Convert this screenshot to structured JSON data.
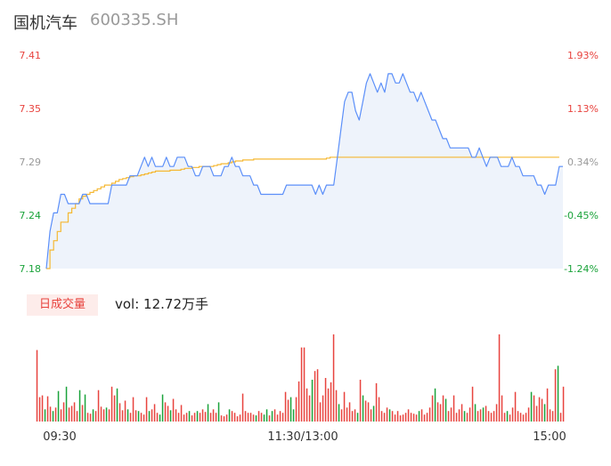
{
  "header": {
    "name": "国机汽车",
    "code": "600335.SH"
  },
  "volume_panel": {
    "period_button": "日成交量",
    "vol_prefix": "vol: ",
    "vol_value": "12.72万手"
  },
  "colors": {
    "price_line": "#5b8ff9",
    "avg_line": "#f5b833",
    "area_fill": "#eef3fb",
    "up": "#e8433e",
    "down": "#1aa33a",
    "neutral": "#999999"
  },
  "chart_data": [
    {
      "type": "line",
      "title": "",
      "y_price_ticks": [
        "7.41",
        "7.35",
        "7.29",
        "7.24",
        "7.18"
      ],
      "y_pct_ticks": [
        "1.93%",
        "1.13%",
        "0.34%",
        "-0.45%",
        "-1.24%"
      ],
      "ylim": [
        7.18,
        7.41
      ],
      "prev_close": 7.265,
      "series": [
        {
          "name": "",
          "values": [
            7.18,
            7.22,
            7.24,
            7.24,
            7.26,
            7.26,
            7.25,
            7.25,
            7.25,
            7.25,
            7.26,
            7.26,
            7.25,
            7.25,
            7.25,
            7.25,
            7.25,
            7.25,
            7.27,
            7.27,
            7.27,
            7.27,
            7.27,
            7.28,
            7.28,
            7.28,
            7.29,
            7.3,
            7.29,
            7.3,
            7.29,
            7.29,
            7.29,
            7.3,
            7.29,
            7.29,
            7.3,
            7.3,
            7.3,
            7.29,
            7.29,
            7.28,
            7.28,
            7.29,
            7.29,
            7.29,
            7.28,
            7.28,
            7.28,
            7.29,
            7.29,
            7.3,
            7.29,
            7.29,
            7.28,
            7.28,
            7.28,
            7.27,
            7.27,
            7.26,
            7.26,
            7.26,
            7.26,
            7.26,
            7.26,
            7.26,
            7.27,
            7.27,
            7.27,
            7.27,
            7.27,
            7.27,
            7.27,
            7.27,
            7.26,
            7.27,
            7.26,
            7.27,
            7.27,
            7.27,
            7.3,
            7.33,
            7.36,
            7.37,
            7.37,
            7.35,
            7.34,
            7.36,
            7.38,
            7.39,
            7.38,
            7.37,
            7.38,
            7.37,
            7.39,
            7.39,
            7.38,
            7.38,
            7.39,
            7.38,
            7.37,
            7.37,
            7.36,
            7.37,
            7.36,
            7.35,
            7.34,
            7.34,
            7.33,
            7.32,
            7.32,
            7.31,
            7.31,
            7.31,
            7.31,
            7.31,
            7.31,
            7.3,
            7.3,
            7.31,
            7.3,
            7.29,
            7.3,
            7.3,
            7.3,
            7.29,
            7.29,
            7.29,
            7.3,
            7.29,
            7.29,
            7.28,
            7.28,
            7.28,
            7.28,
            7.27,
            7.27,
            7.26,
            7.27,
            7.27,
            7.27,
            7.29,
            7.29
          ]
        },
        {
          "name": "",
          "values": [
            7.18,
            7.2,
            7.21,
            7.22,
            7.23,
            7.23,
            7.24,
            7.245,
            7.25,
            7.255,
            7.258,
            7.26,
            7.262,
            7.264,
            7.266,
            7.268,
            7.27,
            7.27,
            7.272,
            7.274,
            7.276,
            7.277,
            7.278,
            7.279,
            7.28,
            7.28,
            7.281,
            7.282,
            7.283,
            7.284,
            7.285,
            7.285,
            7.285,
            7.285,
            7.286,
            7.286,
            7.286,
            7.287,
            7.288,
            7.288,
            7.289,
            7.289,
            7.29,
            7.29,
            7.29,
            7.29,
            7.291,
            7.292,
            7.293,
            7.293,
            7.294,
            7.295,
            7.296,
            7.296,
            7.297,
            7.297,
            7.297,
            7.298,
            7.298,
            7.298,
            7.298,
            7.298,
            7.298,
            7.298,
            7.298,
            7.298,
            7.298,
            7.298,
            7.298,
            7.298,
            7.298,
            7.298,
            7.298,
            7.298,
            7.298,
            7.298,
            7.298,
            7.299,
            7.3,
            7.3,
            7.3,
            7.3,
            7.3,
            7.3,
            7.3,
            7.3,
            7.3,
            7.3,
            7.3,
            7.3,
            7.3,
            7.3,
            7.3,
            7.3,
            7.3,
            7.3,
            7.3,
            7.3,
            7.3,
            7.3,
            7.3,
            7.3,
            7.3,
            7.3,
            7.3,
            7.3,
            7.3,
            7.3,
            7.3,
            7.3,
            7.3,
            7.3,
            7.3,
            7.3,
            7.3,
            7.3,
            7.3,
            7.3,
            7.3,
            7.3,
            7.3,
            7.3,
            7.3,
            7.3,
            7.3,
            7.3,
            7.3,
            7.3,
            7.3,
            7.3,
            7.3,
            7.3,
            7.3,
            7.3,
            7.3,
            7.3,
            7.3,
            7.3,
            7.3,
            7.3,
            7.3,
            7.3
          ]
        }
      ]
    },
    {
      "type": "bar",
      "title": "",
      "x_ticks": [
        "09:30",
        "11:30/13:00",
        "15:00"
      ],
      "bars": [
        {
          "v": 0.82,
          "d": "up"
        },
        {
          "v": 0.28,
          "d": "up"
        },
        {
          "v": 0.3,
          "d": "up"
        },
        {
          "v": 0.14,
          "d": "down"
        },
        {
          "v": 0.29,
          "d": "up"
        },
        {
          "v": 0.17,
          "d": "up"
        },
        {
          "v": 0.12,
          "d": "down"
        },
        {
          "v": 0.16,
          "d": "up"
        },
        {
          "v": 0.35,
          "d": "down"
        },
        {
          "v": 0.14,
          "d": "up"
        },
        {
          "v": 0.22,
          "d": "up"
        },
        {
          "v": 0.4,
          "d": "down"
        },
        {
          "v": 0.16,
          "d": "up"
        },
        {
          "v": 0.18,
          "d": "up"
        },
        {
          "v": 0.22,
          "d": "up"
        },
        {
          "v": 0.12,
          "d": "up"
        },
        {
          "v": 0.36,
          "d": "down"
        },
        {
          "v": 0.19,
          "d": "up"
        },
        {
          "v": 0.31,
          "d": "down"
        },
        {
          "v": 0.1,
          "d": "up"
        },
        {
          "v": 0.09,
          "d": "up"
        },
        {
          "v": 0.14,
          "d": "down"
        },
        {
          "v": 0.12,
          "d": "up"
        },
        {
          "v": 0.36,
          "d": "up"
        },
        {
          "v": 0.17,
          "d": "up"
        },
        {
          "v": 0.14,
          "d": "up"
        },
        {
          "v": 0.16,
          "d": "down"
        },
        {
          "v": 0.14,
          "d": "up"
        },
        {
          "v": 0.4,
          "d": "up"
        },
        {
          "v": 0.3,
          "d": "up"
        },
        {
          "v": 0.38,
          "d": "down"
        },
        {
          "v": 0.21,
          "d": "up"
        },
        {
          "v": 0.13,
          "d": "up"
        },
        {
          "v": 0.24,
          "d": "up"
        },
        {
          "v": 0.14,
          "d": "down"
        },
        {
          "v": 0.1,
          "d": "up"
        },
        {
          "v": 0.28,
          "d": "up"
        },
        {
          "v": 0.13,
          "d": "up"
        },
        {
          "v": 0.12,
          "d": "down"
        },
        {
          "v": 0.1,
          "d": "up"
        },
        {
          "v": 0.08,
          "d": "up"
        },
        {
          "v": 0.28,
          "d": "up"
        },
        {
          "v": 0.12,
          "d": "down"
        },
        {
          "v": 0.14,
          "d": "up"
        },
        {
          "v": 0.2,
          "d": "up"
        },
        {
          "v": 0.1,
          "d": "up"
        },
        {
          "v": 0.08,
          "d": "down"
        },
        {
          "v": 0.31,
          "d": "down"
        },
        {
          "v": 0.22,
          "d": "up"
        },
        {
          "v": 0.18,
          "d": "up"
        },
        {
          "v": 0.13,
          "d": "down"
        },
        {
          "v": 0.26,
          "d": "up"
        },
        {
          "v": 0.14,
          "d": "up"
        },
        {
          "v": 0.1,
          "d": "up"
        },
        {
          "v": 0.19,
          "d": "up"
        },
        {
          "v": 0.08,
          "d": "up"
        },
        {
          "v": 0.1,
          "d": "up"
        },
        {
          "v": 0.12,
          "d": "down"
        },
        {
          "v": 0.07,
          "d": "up"
        },
        {
          "v": 0.1,
          "d": "up"
        },
        {
          "v": 0.12,
          "d": "down"
        },
        {
          "v": 0.1,
          "d": "up"
        },
        {
          "v": 0.14,
          "d": "up"
        },
        {
          "v": 0.11,
          "d": "up"
        },
        {
          "v": 0.2,
          "d": "down"
        },
        {
          "v": 0.1,
          "d": "up"
        },
        {
          "v": 0.14,
          "d": "up"
        },
        {
          "v": 0.1,
          "d": "up"
        },
        {
          "v": 0.22,
          "d": "down"
        },
        {
          "v": 0.07,
          "d": "up"
        },
        {
          "v": 0.06,
          "d": "up"
        },
        {
          "v": 0.08,
          "d": "up"
        },
        {
          "v": 0.14,
          "d": "down"
        },
        {
          "v": 0.12,
          "d": "up"
        },
        {
          "v": 0.1,
          "d": "up"
        },
        {
          "v": 0.06,
          "d": "up"
        },
        {
          "v": 0.08,
          "d": "up"
        },
        {
          "v": 0.32,
          "d": "up"
        },
        {
          "v": 0.12,
          "d": "up"
        },
        {
          "v": 0.1,
          "d": "up"
        },
        {
          "v": 0.1,
          "d": "up"
        },
        {
          "v": 0.08,
          "d": "up"
        },
        {
          "v": 0.07,
          "d": "down"
        },
        {
          "v": 0.12,
          "d": "up"
        },
        {
          "v": 0.1,
          "d": "up"
        },
        {
          "v": 0.08,
          "d": "down"
        },
        {
          "v": 0.14,
          "d": "down"
        },
        {
          "v": 0.07,
          "d": "up"
        },
        {
          "v": 0.12,
          "d": "down"
        },
        {
          "v": 0.14,
          "d": "up"
        },
        {
          "v": 0.08,
          "d": "up"
        },
        {
          "v": 0.12,
          "d": "up"
        },
        {
          "v": 0.1,
          "d": "up"
        },
        {
          "v": 0.34,
          "d": "up"
        },
        {
          "v": 0.25,
          "d": "up"
        },
        {
          "v": 0.28,
          "d": "down"
        },
        {
          "v": 0.14,
          "d": "down"
        },
        {
          "v": 0.28,
          "d": "up"
        },
        {
          "v": 0.46,
          "d": "up"
        },
        {
          "v": 0.85,
          "d": "up"
        },
        {
          "v": 0.85,
          "d": "up"
        },
        {
          "v": 0.38,
          "d": "up"
        },
        {
          "v": 0.3,
          "d": "up"
        },
        {
          "v": 0.48,
          "d": "down"
        },
        {
          "v": 0.58,
          "d": "up"
        },
        {
          "v": 0.6,
          "d": "up"
        },
        {
          "v": 0.22,
          "d": "up"
        },
        {
          "v": 0.3,
          "d": "up"
        },
        {
          "v": 0.5,
          "d": "up"
        },
        {
          "v": 0.38,
          "d": "up"
        },
        {
          "v": 0.45,
          "d": "up"
        },
        {
          "v": 1.0,
          "d": "up"
        },
        {
          "v": 0.36,
          "d": "up"
        },
        {
          "v": 0.2,
          "d": "down"
        },
        {
          "v": 0.14,
          "d": "up"
        },
        {
          "v": 0.34,
          "d": "up"
        },
        {
          "v": 0.16,
          "d": "up"
        },
        {
          "v": 0.22,
          "d": "up"
        },
        {
          "v": 0.12,
          "d": "up"
        },
        {
          "v": 0.14,
          "d": "up"
        },
        {
          "v": 0.1,
          "d": "down"
        },
        {
          "v": 0.48,
          "d": "up"
        },
        {
          "v": 0.3,
          "d": "down"
        },
        {
          "v": 0.24,
          "d": "up"
        },
        {
          "v": 0.22,
          "d": "up"
        },
        {
          "v": 0.14,
          "d": "up"
        },
        {
          "v": 0.18,
          "d": "down"
        },
        {
          "v": 0.44,
          "d": "up"
        },
        {
          "v": 0.28,
          "d": "up"
        },
        {
          "v": 0.12,
          "d": "up"
        },
        {
          "v": 0.1,
          "d": "up"
        },
        {
          "v": 0.16,
          "d": "up"
        },
        {
          "v": 0.14,
          "d": "down"
        },
        {
          "v": 0.12,
          "d": "up"
        },
        {
          "v": 0.08,
          "d": "up"
        },
        {
          "v": 0.12,
          "d": "up"
        },
        {
          "v": 0.07,
          "d": "up"
        },
        {
          "v": 0.08,
          "d": "up"
        },
        {
          "v": 0.1,
          "d": "up"
        },
        {
          "v": 0.14,
          "d": "up"
        },
        {
          "v": 0.1,
          "d": "up"
        },
        {
          "v": 0.09,
          "d": "up"
        },
        {
          "v": 0.08,
          "d": "up"
        },
        {
          "v": 0.12,
          "d": "down"
        },
        {
          "v": 0.14,
          "d": "up"
        },
        {
          "v": 0.08,
          "d": "up"
        },
        {
          "v": 0.1,
          "d": "up"
        },
        {
          "v": 0.16,
          "d": "up"
        },
        {
          "v": 0.3,
          "d": "up"
        },
        {
          "v": 0.38,
          "d": "down"
        },
        {
          "v": 0.22,
          "d": "up"
        },
        {
          "v": 0.2,
          "d": "up"
        },
        {
          "v": 0.3,
          "d": "up"
        },
        {
          "v": 0.26,
          "d": "down"
        },
        {
          "v": 0.12,
          "d": "up"
        },
        {
          "v": 0.16,
          "d": "up"
        },
        {
          "v": 0.3,
          "d": "up"
        },
        {
          "v": 0.1,
          "d": "up"
        },
        {
          "v": 0.14,
          "d": "up"
        },
        {
          "v": 0.2,
          "d": "up"
        },
        {
          "v": 0.12,
          "d": "down"
        },
        {
          "v": 0.1,
          "d": "up"
        },
        {
          "v": 0.16,
          "d": "up"
        },
        {
          "v": 0.4,
          "d": "up"
        },
        {
          "v": 0.2,
          "d": "down"
        },
        {
          "v": 0.12,
          "d": "up"
        },
        {
          "v": 0.14,
          "d": "up"
        },
        {
          "v": 0.16,
          "d": "down"
        },
        {
          "v": 0.18,
          "d": "up"
        },
        {
          "v": 0.12,
          "d": "up"
        },
        {
          "v": 0.1,
          "d": "up"
        },
        {
          "v": 0.12,
          "d": "up"
        },
        {
          "v": 0.2,
          "d": "up"
        },
        {
          "v": 1.0,
          "d": "up"
        },
        {
          "v": 0.3,
          "d": "up"
        },
        {
          "v": 0.1,
          "d": "up"
        },
        {
          "v": 0.12,
          "d": "down"
        },
        {
          "v": 0.08,
          "d": "up"
        },
        {
          "v": 0.16,
          "d": "up"
        },
        {
          "v": 0.34,
          "d": "up"
        },
        {
          "v": 0.12,
          "d": "up"
        },
        {
          "v": 0.1,
          "d": "up"
        },
        {
          "v": 0.08,
          "d": "up"
        },
        {
          "v": 0.1,
          "d": "up"
        },
        {
          "v": 0.16,
          "d": "up"
        },
        {
          "v": 0.34,
          "d": "down"
        },
        {
          "v": 0.3,
          "d": "up"
        },
        {
          "v": 0.18,
          "d": "up"
        },
        {
          "v": 0.28,
          "d": "up"
        },
        {
          "v": 0.26,
          "d": "up"
        },
        {
          "v": 0.2,
          "d": "down"
        },
        {
          "v": 0.38,
          "d": "up"
        },
        {
          "v": 0.14,
          "d": "up"
        },
        {
          "v": 0.12,
          "d": "up"
        },
        {
          "v": 0.6,
          "d": "up"
        },
        {
          "v": 0.64,
          "d": "down"
        },
        {
          "v": 0.1,
          "d": "up"
        },
        {
          "v": 0.4,
          "d": "up"
        }
      ]
    }
  ]
}
